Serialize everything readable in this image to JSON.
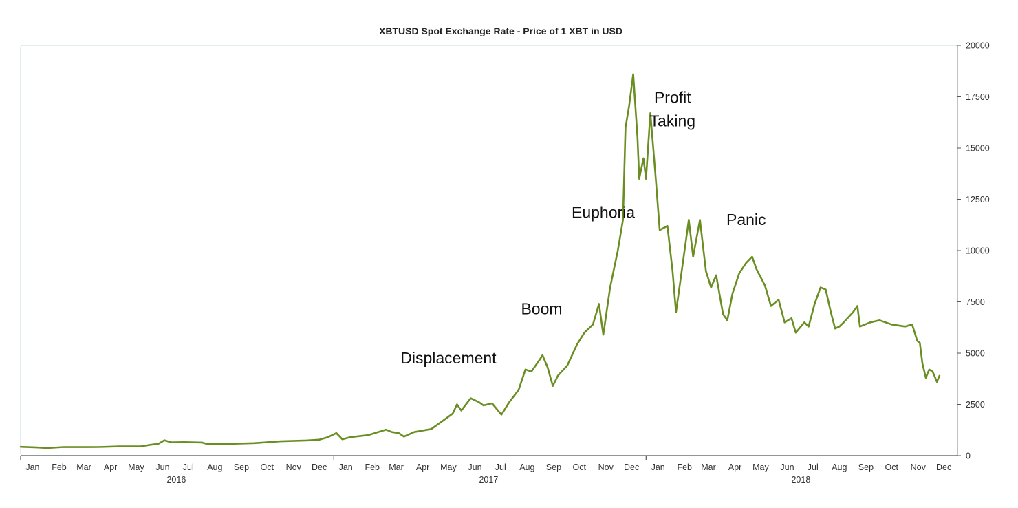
{
  "chart_data": {
    "type": "line",
    "title": "XBTUSD Spot Exchange Rate - Price of 1 XBT in USD",
    "xlabel": "",
    "ylabel": "",
    "xlim": [
      "2016-01-01",
      "2018-12-31"
    ],
    "ylim": [
      0,
      20000
    ],
    "y_ticks": [
      "0",
      "2500",
      "5000",
      "7500",
      "10000",
      "12500",
      "15000",
      "17500",
      "20000"
    ],
    "y_axis_side": "right",
    "grid": false,
    "line_color": "#6b8e23",
    "frame_color": "#cfe3ea",
    "x_ticks": [
      {
        "date": "2016-01-15",
        "label": "Jan"
      },
      {
        "date": "2016-02-15",
        "label": "Feb"
      },
      {
        "date": "2016-03-15",
        "label": "Mar"
      },
      {
        "date": "2016-04-15",
        "label": "Apr"
      },
      {
        "date": "2016-05-15",
        "label": "May"
      },
      {
        "date": "2016-06-15",
        "label": "Jun"
      },
      {
        "date": "2016-07-15",
        "label": "Jul"
      },
      {
        "date": "2016-08-15",
        "label": "Aug"
      },
      {
        "date": "2016-09-15",
        "label": "Sep"
      },
      {
        "date": "2016-10-15",
        "label": "Oct"
      },
      {
        "date": "2016-11-15",
        "label": "Nov"
      },
      {
        "date": "2016-12-15",
        "label": "Dec"
      },
      {
        "date": "2017-01-15",
        "label": "Jan"
      },
      {
        "date": "2017-02-15",
        "label": "Feb"
      },
      {
        "date": "2017-03-15",
        "label": "Mar"
      },
      {
        "date": "2017-04-15",
        "label": "Apr"
      },
      {
        "date": "2017-05-15",
        "label": "May"
      },
      {
        "date": "2017-06-15",
        "label": "Jun"
      },
      {
        "date": "2017-07-15",
        "label": "Jul"
      },
      {
        "date": "2017-08-15",
        "label": "Aug"
      },
      {
        "date": "2017-09-15",
        "label": "Sep"
      },
      {
        "date": "2017-10-15",
        "label": "Oct"
      },
      {
        "date": "2017-11-15",
        "label": "Nov"
      },
      {
        "date": "2017-12-15",
        "label": "Dec"
      },
      {
        "date": "2018-01-15",
        "label": "Jan"
      },
      {
        "date": "2018-02-15",
        "label": "Feb"
      },
      {
        "date": "2018-03-15",
        "label": "Mar"
      },
      {
        "date": "2018-04-15",
        "label": "Apr"
      },
      {
        "date": "2018-05-15",
        "label": "May"
      },
      {
        "date": "2018-06-15",
        "label": "Jun"
      },
      {
        "date": "2018-07-15",
        "label": "Jul"
      },
      {
        "date": "2018-08-15",
        "label": "Aug"
      },
      {
        "date": "2018-09-15",
        "label": "Sep"
      },
      {
        "date": "2018-10-15",
        "label": "Oct"
      },
      {
        "date": "2018-11-15",
        "label": "Nov"
      },
      {
        "date": "2018-12-15",
        "label": "Dec"
      }
    ],
    "year_labels": [
      {
        "date": "2016-07-01",
        "label": "2016"
      },
      {
        "date": "2017-07-01",
        "label": "2017"
      },
      {
        "date": "2018-07-01",
        "label": "2018"
      }
    ],
    "year_boundaries": [
      "2016-01-01",
      "2017-01-01",
      "2018-01-01"
    ],
    "series": [
      {
        "points": [
          [
            "2016-01-01",
            430
          ],
          [
            "2016-01-20",
            400
          ],
          [
            "2016-02-01",
            370
          ],
          [
            "2016-02-20",
            420
          ],
          [
            "2016-03-10",
            415
          ],
          [
            "2016-04-01",
            420
          ],
          [
            "2016-04-25",
            450
          ],
          [
            "2016-05-20",
            450
          ],
          [
            "2016-06-01",
            530
          ],
          [
            "2016-06-10",
            580
          ],
          [
            "2016-06-17",
            750
          ],
          [
            "2016-06-25",
            650
          ],
          [
            "2016-07-10",
            660
          ],
          [
            "2016-07-31",
            640
          ],
          [
            "2016-08-05",
            580
          ],
          [
            "2016-08-31",
            575
          ],
          [
            "2016-09-30",
            610
          ],
          [
            "2016-10-31",
            700
          ],
          [
            "2016-11-30",
            740
          ],
          [
            "2016-12-15",
            780
          ],
          [
            "2016-12-25",
            900
          ],
          [
            "2017-01-04",
            1100
          ],
          [
            "2017-01-11",
            800
          ],
          [
            "2017-01-20",
            900
          ],
          [
            "2017-02-10",
            1000
          ],
          [
            "2017-03-03",
            1270
          ],
          [
            "2017-03-10",
            1150
          ],
          [
            "2017-03-18",
            1100
          ],
          [
            "2017-03-24",
            930
          ],
          [
            "2017-04-05",
            1150
          ],
          [
            "2017-04-25",
            1300
          ],
          [
            "2017-05-10",
            1750
          ],
          [
            "2017-05-20",
            2050
          ],
          [
            "2017-05-25",
            2500
          ],
          [
            "2017-05-30",
            2200
          ],
          [
            "2017-06-10",
            2800
          ],
          [
            "2017-06-20",
            2600
          ],
          [
            "2017-06-25",
            2450
          ],
          [
            "2017-07-05",
            2550
          ],
          [
            "2017-07-16",
            2000
          ],
          [
            "2017-07-25",
            2600
          ],
          [
            "2017-08-05",
            3200
          ],
          [
            "2017-08-13",
            4200
          ],
          [
            "2017-08-20",
            4100
          ],
          [
            "2017-08-30",
            4700
          ],
          [
            "2017-09-02",
            4900
          ],
          [
            "2017-09-08",
            4300
          ],
          [
            "2017-09-14",
            3400
          ],
          [
            "2017-09-20",
            3900
          ],
          [
            "2017-10-01",
            4400
          ],
          [
            "2017-10-12",
            5400
          ],
          [
            "2017-10-21",
            6000
          ],
          [
            "2017-10-31",
            6400
          ],
          [
            "2017-11-07",
            7400
          ],
          [
            "2017-11-12",
            5900
          ],
          [
            "2017-11-20",
            8200
          ],
          [
            "2017-11-29",
            10000
          ],
          [
            "2017-12-05",
            11500
          ],
          [
            "2017-12-08",
            16000
          ],
          [
            "2017-12-12",
            17000
          ],
          [
            "2017-12-17",
            18600
          ],
          [
            "2017-12-22",
            15500
          ],
          [
            "2017-12-24",
            13500
          ],
          [
            "2017-12-29",
            14500
          ],
          [
            "2018-01-01",
            13500
          ],
          [
            "2018-01-06",
            16700
          ],
          [
            "2018-01-12",
            13700
          ],
          [
            "2018-01-17",
            11000
          ],
          [
            "2018-01-26",
            11200
          ],
          [
            "2018-02-01",
            9000
          ],
          [
            "2018-02-05",
            7000
          ],
          [
            "2018-02-09",
            8200
          ],
          [
            "2018-02-20",
            11500
          ],
          [
            "2018-02-25",
            9700
          ],
          [
            "2018-03-05",
            11500
          ],
          [
            "2018-03-12",
            9000
          ],
          [
            "2018-03-18",
            8200
          ],
          [
            "2018-03-24",
            8800
          ],
          [
            "2018-04-01",
            6900
          ],
          [
            "2018-04-06",
            6600
          ],
          [
            "2018-04-12",
            7900
          ],
          [
            "2018-04-20",
            8900
          ],
          [
            "2018-04-28",
            9400
          ],
          [
            "2018-05-05",
            9700
          ],
          [
            "2018-05-10",
            9100
          ],
          [
            "2018-05-20",
            8300
          ],
          [
            "2018-05-27",
            7300
          ],
          [
            "2018-06-05",
            7600
          ],
          [
            "2018-06-12",
            6500
          ],
          [
            "2018-06-20",
            6700
          ],
          [
            "2018-06-25",
            6000
          ],
          [
            "2018-07-05",
            6500
          ],
          [
            "2018-07-10",
            6300
          ],
          [
            "2018-07-17",
            7400
          ],
          [
            "2018-07-24",
            8200
          ],
          [
            "2018-07-30",
            8100
          ],
          [
            "2018-08-05",
            7000
          ],
          [
            "2018-08-10",
            6200
          ],
          [
            "2018-08-15",
            6300
          ],
          [
            "2018-08-20",
            6500
          ],
          [
            "2018-08-31",
            7000
          ],
          [
            "2018-09-05",
            7300
          ],
          [
            "2018-09-08",
            6300
          ],
          [
            "2018-09-20",
            6500
          ],
          [
            "2018-10-01",
            6600
          ],
          [
            "2018-10-15",
            6400
          ],
          [
            "2018-10-31",
            6300
          ],
          [
            "2018-11-08",
            6400
          ],
          [
            "2018-11-14",
            5600
          ],
          [
            "2018-11-17",
            5500
          ],
          [
            "2018-11-20",
            4500
          ],
          [
            "2018-11-24",
            3800
          ],
          [
            "2018-11-28",
            4200
          ],
          [
            "2018-12-02",
            4100
          ],
          [
            "2018-12-07",
            3600
          ],
          [
            "2018-12-10",
            3900
          ]
        ]
      }
    ],
    "annotations": [
      {
        "text": "Displacement",
        "date": "2017-05-15",
        "value": 4500
      },
      {
        "text": "Boom",
        "date": "2017-09-01",
        "value": 6900
      },
      {
        "text": "Euphoria",
        "date": "2017-11-12",
        "value": 11600
      },
      {
        "text": "Profit",
        "date": "2018-02-01",
        "value": 17200
      },
      {
        "text": "Taking",
        "date": "2018-02-01",
        "value": 16050
      },
      {
        "text": "Panic",
        "date": "2018-04-28",
        "value": 11250
      }
    ]
  }
}
